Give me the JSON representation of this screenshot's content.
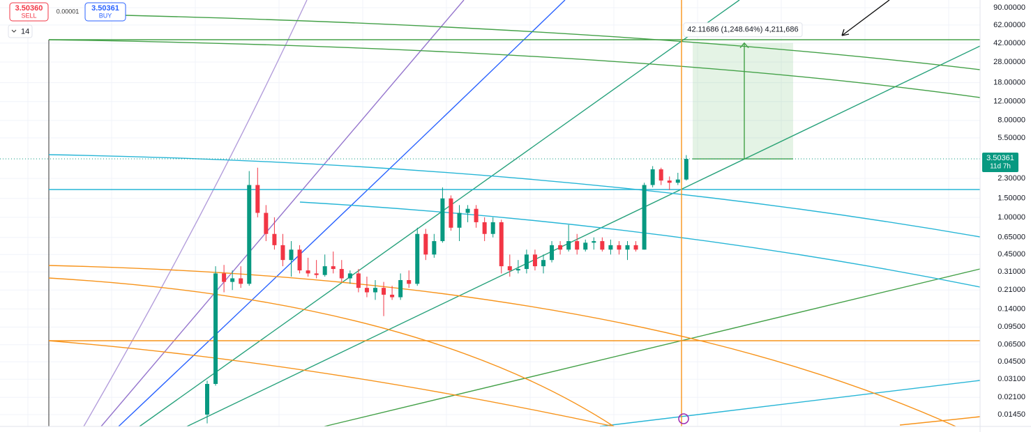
{
  "chart_data": {
    "type": "candlestick",
    "log_scale": true,
    "grid": true,
    "up_color": "#089981",
    "down_color": "#f23645",
    "ylim": [
      0.01125,
      106
    ],
    "yticks": [
      {
        "value": 90,
        "label": "90.00000"
      },
      {
        "value": 62,
        "label": "62.00000"
      },
      {
        "value": 42,
        "label": "42.00000"
      },
      {
        "value": 28,
        "label": "28.00000"
      },
      {
        "value": 18,
        "label": "18.00000"
      },
      {
        "value": 12,
        "label": "12.00000"
      },
      {
        "value": 8,
        "label": "8.00000"
      },
      {
        "value": 5.5,
        "label": "5.50000"
      },
      {
        "value": 2.3,
        "label": "2.30000"
      },
      {
        "value": 1.5,
        "label": "1.50000"
      },
      {
        "value": 1,
        "label": "1.00000"
      },
      {
        "value": 0.65,
        "label": "0.65000"
      },
      {
        "value": 0.45,
        "label": "0.45000"
      },
      {
        "value": 0.31,
        "label": "0.31000"
      },
      {
        "value": 0.21,
        "label": "0.21000"
      },
      {
        "value": 0.14,
        "label": "0.14000"
      },
      {
        "value": 0.095,
        "label": "0.09500"
      },
      {
        "value": 0.065,
        "label": "0.06500"
      },
      {
        "value": 0.045,
        "label": "0.04500"
      },
      {
        "value": 0.031,
        "label": "0.03100"
      },
      {
        "value": 0.021,
        "label": "0.02100"
      },
      {
        "value": 0.0145,
        "label": "0.01450"
      }
    ],
    "sell": {
      "price": "3.50360",
      "label": "SELL"
    },
    "buy": {
      "price": "3.50361",
      "label": "BUY"
    },
    "spread": "0.00001",
    "interval": "14",
    "last_price": {
      "value": 3.50361,
      "label": "3.50361"
    },
    "countdown": "11d 7h",
    "measure_label": "42.11686 (1,248.64%) 4,211,686",
    "measure_target": 42.11686,
    "ohlc": [
      [
        0.0145,
        0.03,
        0.012,
        0.028
      ],
      [
        0.028,
        0.35,
        0.027,
        0.3
      ],
      [
        0.3,
        0.36,
        0.2,
        0.25
      ],
      [
        0.25,
        0.32,
        0.21,
        0.27
      ],
      [
        0.27,
        0.35,
        0.22,
        0.24
      ],
      [
        0.24,
        2.7,
        0.23,
        2.0
      ],
      [
        2.0,
        2.9,
        1.0,
        1.1
      ],
      [
        1.1,
        1.3,
        0.6,
        0.7
      ],
      [
        0.7,
        1.0,
        0.5,
        0.55
      ],
      [
        0.55,
        0.7,
        0.35,
        0.4
      ],
      [
        0.4,
        0.6,
        0.28,
        0.5
      ],
      [
        0.5,
        0.55,
        0.3,
        0.32
      ],
      [
        0.32,
        0.42,
        0.28,
        0.3
      ],
      [
        0.3,
        0.4,
        0.27,
        0.29
      ],
      [
        0.29,
        0.45,
        0.28,
        0.35
      ],
      [
        0.35,
        0.48,
        0.3,
        0.33
      ],
      [
        0.33,
        0.4,
        0.25,
        0.27
      ],
      [
        0.27,
        0.32,
        0.24,
        0.3
      ],
      [
        0.3,
        0.33,
        0.2,
        0.22
      ],
      [
        0.22,
        0.28,
        0.18,
        0.2
      ],
      [
        0.2,
        0.26,
        0.17,
        0.22
      ],
      [
        0.22,
        0.25,
        0.12,
        0.19
      ],
      [
        0.19,
        0.23,
        0.17,
        0.18
      ],
      [
        0.18,
        0.3,
        0.17,
        0.26
      ],
      [
        0.26,
        0.32,
        0.22,
        0.24
      ],
      [
        0.24,
        0.8,
        0.23,
        0.7
      ],
      [
        0.7,
        0.78,
        0.4,
        0.45
      ],
      [
        0.45,
        0.7,
        0.42,
        0.6
      ],
      [
        0.6,
        1.9,
        0.58,
        1.5
      ],
      [
        1.5,
        1.6,
        0.75,
        0.8
      ],
      [
        0.8,
        1.3,
        0.6,
        1.1
      ],
      [
        1.1,
        1.3,
        0.9,
        1.2
      ],
      [
        1.2,
        1.3,
        0.8,
        0.9
      ],
      [
        0.9,
        1.0,
        0.6,
        0.7
      ],
      [
        0.7,
        1.0,
        0.65,
        0.9
      ],
      [
        0.9,
        0.95,
        0.3,
        0.35
      ],
      [
        0.35,
        0.45,
        0.28,
        0.32
      ],
      [
        0.32,
        0.4,
        0.3,
        0.33
      ],
      [
        0.33,
        0.5,
        0.3,
        0.45
      ],
      [
        0.45,
        0.5,
        0.32,
        0.35
      ],
      [
        0.35,
        0.45,
        0.3,
        0.4
      ],
      [
        0.4,
        0.6,
        0.38,
        0.55
      ],
      [
        0.55,
        0.6,
        0.45,
        0.5
      ],
      [
        0.5,
        0.85,
        0.48,
        0.6
      ],
      [
        0.6,
        0.7,
        0.45,
        0.5
      ],
      [
        0.5,
        0.62,
        0.48,
        0.58
      ],
      [
        0.58,
        0.65,
        0.5,
        0.6
      ],
      [
        0.6,
        0.65,
        0.48,
        0.5
      ],
      [
        0.5,
        0.62,
        0.45,
        0.55
      ],
      [
        0.55,
        0.6,
        0.45,
        0.5
      ],
      [
        0.5,
        0.6,
        0.4,
        0.55
      ],
      [
        0.55,
        0.6,
        0.48,
        0.5
      ],
      [
        0.5,
        2.1,
        0.5,
        2.0
      ],
      [
        2.0,
        3.0,
        1.9,
        2.8
      ],
      [
        2.8,
        2.9,
        2.0,
        2.2
      ],
      [
        2.2,
        2.4,
        1.8,
        2.1
      ],
      [
        2.1,
        2.6,
        2.0,
        2.25
      ],
      [
        2.25,
        3.8,
        2.2,
        3.50361
      ]
    ]
  }
}
